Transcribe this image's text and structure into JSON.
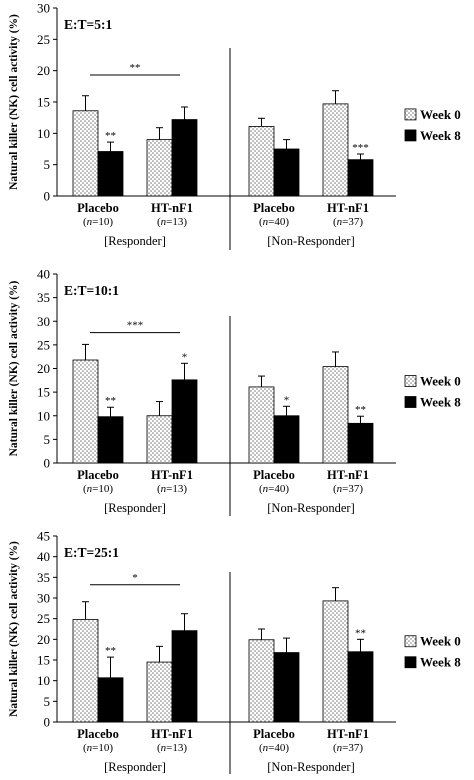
{
  "chart_data": [
    {
      "type": "bar",
      "panel_label": "E:T=5:1",
      "ylabel": "Natural killer (NK) cell activity (%)",
      "ylim": [
        0,
        30
      ],
      "yticks": [
        "0",
        "5",
        "10",
        "15",
        "20",
        "25",
        "30"
      ],
      "categories": [
        "Placebo",
        "HT-nF1",
        "Placebo",
        "HT-nF1"
      ],
      "n_labels": [
        [
          "n",
          "=10)"
        ],
        [
          "n",
          "=13)"
        ],
        [
          "n",
          "=40)"
        ],
        [
          "n",
          "=37)"
        ]
      ],
      "groups": [
        "[Responder]",
        "[Non-Responder]"
      ],
      "legend": [
        "Week 0",
        "Week 8"
      ],
      "series": [
        {
          "name": "Week 0",
          "values": [
            13.6,
            9.0,
            11.1,
            14.7
          ],
          "errors": [
            2.4,
            1.9,
            1.3,
            2.1
          ],
          "sig": [
            "",
            "",
            "",
            ""
          ]
        },
        {
          "name": "Week 8",
          "values": [
            7.1,
            12.2,
            7.5,
            5.8
          ],
          "errors": [
            1.5,
            2.0,
            1.5,
            0.9
          ],
          "sig": [
            "**",
            "",
            "",
            "***"
          ]
        }
      ],
      "bracket": {
        "label": "**",
        "from": 0,
        "to": 1,
        "y": 19.3
      }
    },
    {
      "type": "bar",
      "panel_label": "E:T=10:1",
      "ylabel": "Natural killer (NK) cell activity (%)",
      "ylim": [
        0,
        40
      ],
      "yticks": [
        "0",
        "5",
        "10",
        "15",
        "20",
        "25",
        "30",
        "35",
        "40"
      ],
      "categories": [
        "Placebo",
        "HT-nF1",
        "Placebo",
        "HT-nF1"
      ],
      "n_labels": [
        [
          "n",
          "=10)"
        ],
        [
          "n",
          "=13)"
        ],
        [
          "n",
          "=40)"
        ],
        [
          "n",
          "=37)"
        ]
      ],
      "groups": [
        "[Responder]",
        "[Non-Responder]"
      ],
      "legend": [
        "Week 0",
        "Week 8"
      ],
      "series": [
        {
          "name": "Week 0",
          "values": [
            21.8,
            10.0,
            16.1,
            20.4
          ],
          "errors": [
            3.3,
            3.0,
            2.3,
            3.1
          ],
          "sig": [
            "",
            "",
            "",
            ""
          ]
        },
        {
          "name": "Week 8",
          "values": [
            9.8,
            17.6,
            10.0,
            8.4
          ],
          "errors": [
            2.0,
            3.5,
            2.0,
            1.5
          ],
          "sig": [
            "**",
            "*",
            "*",
            "**"
          ]
        }
      ],
      "bracket": {
        "label": "***",
        "from": 0,
        "to": 1,
        "y": 27.6
      }
    },
    {
      "type": "bar",
      "panel_label": "E:T=25:1",
      "ylabel": "Natural killer (NK) cell activity (%)",
      "ylim": [
        0,
        45
      ],
      "yticks": [
        "0",
        "5",
        "10",
        "15",
        "20",
        "25",
        "30",
        "35",
        "40",
        "45"
      ],
      "categories": [
        "Placebo",
        "HT-nF1",
        "Placebo",
        "HT-nF1"
      ],
      "n_labels": [
        [
          "n",
          "=10)"
        ],
        [
          "n",
          "=13)"
        ],
        [
          "n",
          "=40)"
        ],
        [
          "n",
          "=37)"
        ]
      ],
      "groups": [
        "[Responder]",
        "[Non-Responder]"
      ],
      "legend": [
        "Week 0",
        "Week 8"
      ],
      "series": [
        {
          "name": "Week 0",
          "values": [
            24.8,
            14.5,
            19.9,
            29.3
          ],
          "errors": [
            4.3,
            3.8,
            2.6,
            3.2
          ],
          "sig": [
            "",
            "",
            "",
            ""
          ]
        },
        {
          "name": "Week 8",
          "values": [
            10.7,
            22.1,
            16.8,
            17.0
          ],
          "errors": [
            5.0,
            4.1,
            3.5,
            3.0
          ],
          "sig": [
            "**",
            "",
            "",
            "**"
          ]
        }
      ],
      "bracket": {
        "label": "*",
        "from": 0,
        "to": 1,
        "y": 33.2
      }
    }
  ]
}
